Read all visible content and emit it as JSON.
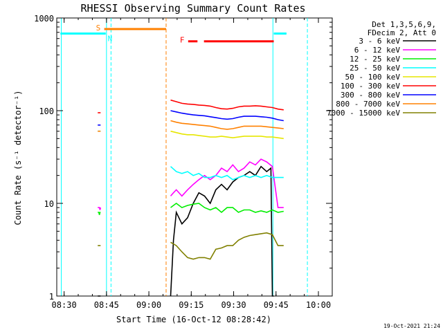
{
  "chart_data": {
    "type": "line",
    "title": "RHESSI Observing Summary Count Rates",
    "xlabel": "Start Time (16-Oct-12 08:28:42)",
    "ylabel": "Count Rate (s⁻¹ detector⁻¹)",
    "x_unit": "minutes after 08:28:42",
    "xlim": [
      0,
      80
    ],
    "ylim": [
      1,
      1000
    ],
    "yscale": "log",
    "x_ticks": [
      {
        "t": 1.3,
        "label": "08:30"
      },
      {
        "t": 16.3,
        "label": "08:45"
      },
      {
        "t": 31.3,
        "label": "09:00"
      },
      {
        "t": 46.3,
        "label": "09:15"
      },
      {
        "t": 61.3,
        "label": "09:30"
      },
      {
        "t": 76.3,
        "label": "09:45"
      },
      {
        "t": 91.3,
        "label": "10:00"
      }
    ],
    "y_ticks": [
      {
        "v": 1,
        "label": "1"
      },
      {
        "v": 10,
        "label": "10"
      },
      {
        "v": 100,
        "label": "100"
      },
      {
        "v": 1000,
        "label": "1000"
      }
    ],
    "legend_header": [
      "Det 1,3,5,6,9,",
      "FDecim 2, Att 0"
    ],
    "legend_position": "right",
    "series": [
      {
        "name": "3 - 6 keV",
        "color": "#000000",
        "points": [
          [
            13.2,
            1
          ],
          [
            13.4,
            1
          ],
          [
            13.6,
            1
          ],
          [
            13.8,
            1
          ],
          [
            14,
            1
          ],
          [
            14.2,
            1
          ],
          [
            39,
            1
          ],
          [
            40,
            4
          ],
          [
            41,
            8
          ],
          [
            43,
            6
          ],
          [
            45,
            7
          ],
          [
            47,
            10
          ],
          [
            49,
            13
          ],
          [
            51,
            12
          ],
          [
            53,
            10
          ],
          [
            55,
            14
          ],
          [
            57,
            16
          ],
          [
            59,
            14
          ],
          [
            61,
            17
          ],
          [
            63,
            19
          ],
          [
            65,
            20
          ],
          [
            67,
            22
          ],
          [
            69,
            20
          ],
          [
            71,
            25
          ],
          [
            73,
            22
          ],
          [
            74.5,
            24
          ],
          [
            75,
            1
          ],
          [
            75.5,
            1
          ]
        ]
      },
      {
        "name": "6 - 12 keV",
        "color": "#ff00ff",
        "points": [
          [
            13.2,
            9
          ],
          [
            13.4,
            9
          ],
          [
            13.6,
            9
          ],
          [
            13.8,
            9
          ],
          [
            14,
            8.5
          ],
          [
            14.2,
            9
          ],
          [
            39,
            12
          ],
          [
            40,
            13
          ],
          [
            41,
            14
          ],
          [
            43,
            12
          ],
          [
            45,
            14
          ],
          [
            47,
            16
          ],
          [
            49,
            18
          ],
          [
            51,
            20
          ],
          [
            53,
            18
          ],
          [
            55,
            20
          ],
          [
            57,
            24
          ],
          [
            59,
            22
          ],
          [
            61,
            26
          ],
          [
            63,
            22
          ],
          [
            65,
            24
          ],
          [
            67,
            28
          ],
          [
            69,
            26
          ],
          [
            71,
            30
          ],
          [
            73,
            28
          ],
          [
            75,
            25
          ],
          [
            77,
            9
          ],
          [
            79,
            9
          ]
        ]
      },
      {
        "name": "12 - 25 keV",
        "color": "#00ee00",
        "points": [
          [
            13.2,
            8
          ],
          [
            13.4,
            8
          ],
          [
            13.6,
            8
          ],
          [
            13.8,
            7.5
          ],
          [
            14,
            8
          ],
          [
            14.2,
            8
          ],
          [
            39,
            9
          ],
          [
            40,
            9.5
          ],
          [
            41,
            10
          ],
          [
            43,
            9
          ],
          [
            45,
            9.5
          ],
          [
            47,
            9.8
          ],
          [
            49,
            10
          ],
          [
            51,
            9
          ],
          [
            53,
            8.5
          ],
          [
            55,
            9
          ],
          [
            57,
            8
          ],
          [
            59,
            9
          ],
          [
            61,
            9
          ],
          [
            63,
            8
          ],
          [
            65,
            8.5
          ],
          [
            67,
            8.5
          ],
          [
            69,
            8
          ],
          [
            71,
            8.3
          ],
          [
            73,
            8
          ],
          [
            75,
            8.5
          ],
          [
            77,
            8
          ],
          [
            79,
            8.2
          ]
        ]
      },
      {
        "name": "25 - 50 keV",
        "color": "#00ffff",
        "points": [
          [
            13.2,
            60
          ],
          [
            13.4,
            60
          ],
          [
            13.6,
            60
          ],
          [
            13.8,
            60
          ],
          [
            14,
            60
          ],
          [
            14.2,
            60
          ],
          [
            39,
            25
          ],
          [
            41,
            22
          ],
          [
            43,
            21
          ],
          [
            45,
            22
          ],
          [
            47,
            20
          ],
          [
            49,
            21
          ],
          [
            51,
            19
          ],
          [
            53,
            19
          ],
          [
            55,
            20
          ],
          [
            57,
            19
          ],
          [
            59,
            20
          ],
          [
            61,
            18
          ],
          [
            63,
            19
          ],
          [
            65,
            20
          ],
          [
            67,
            19
          ],
          [
            69,
            20
          ],
          [
            71,
            19
          ],
          [
            73,
            20
          ],
          [
            75,
            19
          ],
          [
            77,
            19
          ],
          [
            79,
            19
          ]
        ]
      },
      {
        "name": "50 - 100 keV",
        "color": "#e6e600",
        "points": [
          [
            39,
            60
          ],
          [
            41,
            58
          ],
          [
            43,
            56
          ],
          [
            45,
            55
          ],
          [
            47,
            55
          ],
          [
            49,
            54
          ],
          [
            51,
            53
          ],
          [
            53,
            52
          ],
          [
            55,
            52
          ],
          [
            57,
            53
          ],
          [
            59,
            52
          ],
          [
            61,
            51
          ],
          [
            63,
            52
          ],
          [
            65,
            53
          ],
          [
            67,
            53
          ],
          [
            69,
            53
          ],
          [
            71,
            53
          ],
          [
            73,
            52
          ],
          [
            75,
            52
          ],
          [
            77,
            51
          ],
          [
            79,
            50
          ]
        ]
      },
      {
        "name": "100 - 300 keV",
        "color": "#ff0000",
        "points": [
          [
            13.2,
            95
          ],
          [
            13.4,
            95
          ],
          [
            13.6,
            95
          ],
          [
            13.8,
            95
          ],
          [
            14,
            95
          ],
          [
            14.2,
            95
          ],
          [
            39,
            130
          ],
          [
            41,
            125
          ],
          [
            43,
            120
          ],
          [
            45,
            118
          ],
          [
            47,
            117
          ],
          [
            49,
            115
          ],
          [
            51,
            114
          ],
          [
            53,
            112
          ],
          [
            55,
            108
          ],
          [
            57,
            105
          ],
          [
            59,
            104
          ],
          [
            61,
            106
          ],
          [
            63,
            110
          ],
          [
            65,
            112
          ],
          [
            67,
            112
          ],
          [
            69,
            113
          ],
          [
            71,
            112
          ],
          [
            73,
            110
          ],
          [
            75,
            108
          ],
          [
            77,
            104
          ],
          [
            79,
            102
          ]
        ]
      },
      {
        "name": "300 - 800 keV",
        "color": "#0000ff",
        "points": [
          [
            13.2,
            70
          ],
          [
            13.4,
            70
          ],
          [
            13.6,
            70
          ],
          [
            13.8,
            70
          ],
          [
            14,
            70
          ],
          [
            14.2,
            70
          ],
          [
            39,
            100
          ],
          [
            41,
            97
          ],
          [
            43,
            94
          ],
          [
            45,
            92
          ],
          [
            47,
            90
          ],
          [
            49,
            89
          ],
          [
            51,
            88
          ],
          [
            53,
            86
          ],
          [
            55,
            84
          ],
          [
            57,
            82
          ],
          [
            59,
            81
          ],
          [
            61,
            82
          ],
          [
            63,
            85
          ],
          [
            65,
            87
          ],
          [
            67,
            87
          ],
          [
            69,
            87
          ],
          [
            71,
            86
          ],
          [
            73,
            85
          ],
          [
            75,
            83
          ],
          [
            77,
            80
          ],
          [
            79,
            78
          ]
        ]
      },
      {
        "name": "800 - 7000 keV",
        "color": "#ff8000",
        "points": [
          [
            13.2,
            60
          ],
          [
            13.4,
            60
          ],
          [
            13.6,
            60
          ],
          [
            13.8,
            60
          ],
          [
            14,
            60
          ],
          [
            14.2,
            60
          ],
          [
            39,
            78
          ],
          [
            41,
            75
          ],
          [
            43,
            73
          ],
          [
            45,
            72
          ],
          [
            47,
            71
          ],
          [
            49,
            70
          ],
          [
            51,
            69
          ],
          [
            53,
            68
          ],
          [
            55,
            66
          ],
          [
            57,
            64
          ],
          [
            59,
            63
          ],
          [
            61,
            64
          ],
          [
            63,
            66
          ],
          [
            65,
            68
          ],
          [
            67,
            68
          ],
          [
            69,
            68
          ],
          [
            71,
            68
          ],
          [
            73,
            67
          ],
          [
            75,
            66
          ],
          [
            77,
            65
          ],
          [
            79,
            64
          ]
        ]
      },
      {
        "name": "7000 - 15000 keV",
        "color": "#808000",
        "points": [
          [
            13.2,
            3.5
          ],
          [
            13.4,
            3.5
          ],
          [
            13.6,
            3.5
          ],
          [
            13.8,
            3.5
          ],
          [
            14,
            3.5
          ],
          [
            14.2,
            3.5
          ],
          [
            39,
            3.8
          ],
          [
            41,
            3.5
          ],
          [
            43,
            3.0
          ],
          [
            45,
            2.6
          ],
          [
            47,
            2.5
          ],
          [
            49,
            2.6
          ],
          [
            51,
            2.6
          ],
          [
            53,
            2.5
          ],
          [
            55,
            3.2
          ],
          [
            57,
            3.3
          ],
          [
            59,
            3.5
          ],
          [
            61,
            3.5
          ],
          [
            63,
            4.0
          ],
          [
            65,
            4.3
          ],
          [
            67,
            4.5
          ],
          [
            69,
            4.6
          ],
          [
            71,
            4.7
          ],
          [
            73,
            4.8
          ],
          [
            75,
            4.6
          ],
          [
            77,
            3.5
          ],
          [
            79,
            3.5
          ]
        ]
      }
    ],
    "flag_segments": [
      {
        "label": "",
        "color": "#00ffff",
        "t0": 0,
        "t1": 16.0,
        "value": 680
      },
      {
        "label": "S",
        "color": "#ff8000",
        "t0": 15.5,
        "t1": 37.4,
        "value": 760
      },
      {
        "label": "N",
        "color": "#00ffff",
        "t0": 15.5,
        "t1": 16.0,
        "value": 680
      },
      {
        "label": "F",
        "color": "#ff0000",
        "t0": 45.2,
        "t1": 48.5,
        "value": 560
      },
      {
        "label": "",
        "color": "#ff0000",
        "t0": 50.8,
        "t1": 75.5,
        "value": 560
      },
      {
        "label": "",
        "color": "#00ffff",
        "t0": 75.5,
        "t1": 80,
        "value": 680
      }
    ],
    "vertical_markers": [
      {
        "t": 16.3,
        "color": "#00ffff",
        "dashed": false
      },
      {
        "t": 17.9,
        "color": "#00ffff",
        "dashed": true
      },
      {
        "t": 37.4,
        "color": "#ff8000",
        "dashed": true
      },
      {
        "t": 75.2,
        "color": "#00ffff",
        "dashed": false
      },
      {
        "t": 87.4,
        "color": "#00ffff",
        "dashed": true
      },
      {
        "t": 0.3,
        "color": "#00ffff",
        "dashed": false
      }
    ],
    "timestamp": "19-Oct-2021 21:24"
  }
}
